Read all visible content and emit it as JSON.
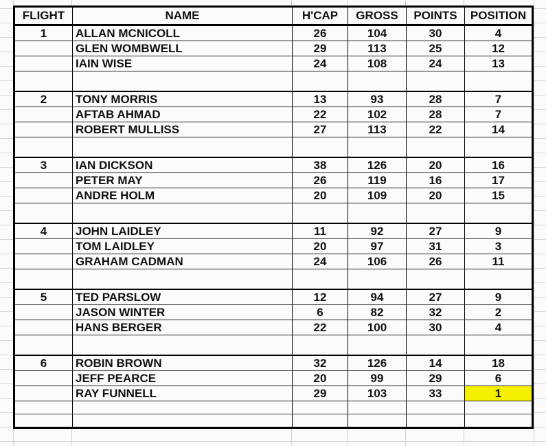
{
  "columns": [
    "FLIGHT",
    "NAME",
    "H'CAP",
    "GROSS",
    "POINTS",
    "POSITION"
  ],
  "highlight_color": "#f5f000",
  "flights": [
    {
      "flight": "1",
      "players": [
        {
          "name": "ALLAN MCNICOLL",
          "hcap": "26",
          "gross": "104",
          "points": "30",
          "position": "4"
        },
        {
          "name": "GLEN WOMBWELL",
          "hcap": "29",
          "gross": "113",
          "points": "25",
          "position": "12"
        },
        {
          "name": "IAIN WISE",
          "hcap": "24",
          "gross": "108",
          "points": "24",
          "position": "13"
        }
      ]
    },
    {
      "flight": "2",
      "players": [
        {
          "name": "TONY MORRIS",
          "hcap": "13",
          "gross": "93",
          "points": "28",
          "position": "7"
        },
        {
          "name": "AFTAB AHMAD",
          "hcap": "22",
          "gross": "102",
          "points": "28",
          "position": "7"
        },
        {
          "name": "ROBERT MULLISS",
          "hcap": "27",
          "gross": "113",
          "points": "22",
          "position": "14"
        }
      ]
    },
    {
      "flight": "3",
      "players": [
        {
          "name": "IAN DICKSON",
          "hcap": "38",
          "gross": "126",
          "points": "20",
          "position": "16"
        },
        {
          "name": "PETER MAY",
          "hcap": "26",
          "gross": "119",
          "points": "16",
          "position": "17"
        },
        {
          "name": "ANDRE HOLM",
          "hcap": "20",
          "gross": "109",
          "points": "20",
          "position": "15"
        }
      ]
    },
    {
      "flight": "4",
      "players": [
        {
          "name": "JOHN LAIDLEY",
          "hcap": "11",
          "gross": "92",
          "points": "27",
          "position": "9"
        },
        {
          "name": "TOM LAIDLEY",
          "hcap": "20",
          "gross": "97",
          "points": "31",
          "position": "3"
        },
        {
          "name": "GRAHAM CADMAN",
          "hcap": "24",
          "gross": "106",
          "points": "26",
          "position": "11"
        }
      ]
    },
    {
      "flight": "5",
      "players": [
        {
          "name": "TED PARSLOW",
          "hcap": "12",
          "gross": "94",
          "points": "27",
          "position": "9"
        },
        {
          "name": "JASON WINTER",
          "hcap": "6",
          "gross": "82",
          "points": "32",
          "position": "2"
        },
        {
          "name": "HANS BERGER",
          "hcap": "22",
          "gross": "100",
          "points": "30",
          "position": "4"
        }
      ]
    },
    {
      "flight": "6",
      "players": [
        {
          "name": "ROBIN BROWN",
          "hcap": "32",
          "gross": "126",
          "points": "14",
          "position": "18"
        },
        {
          "name": "JEFF PEARCE",
          "hcap": "20",
          "gross": "99",
          "points": "29",
          "position": "6"
        },
        {
          "name": "RAY FUNNELL",
          "hcap": "29",
          "gross": "103",
          "points": "33",
          "position": "1",
          "highlighted": true
        }
      ]
    }
  ]
}
